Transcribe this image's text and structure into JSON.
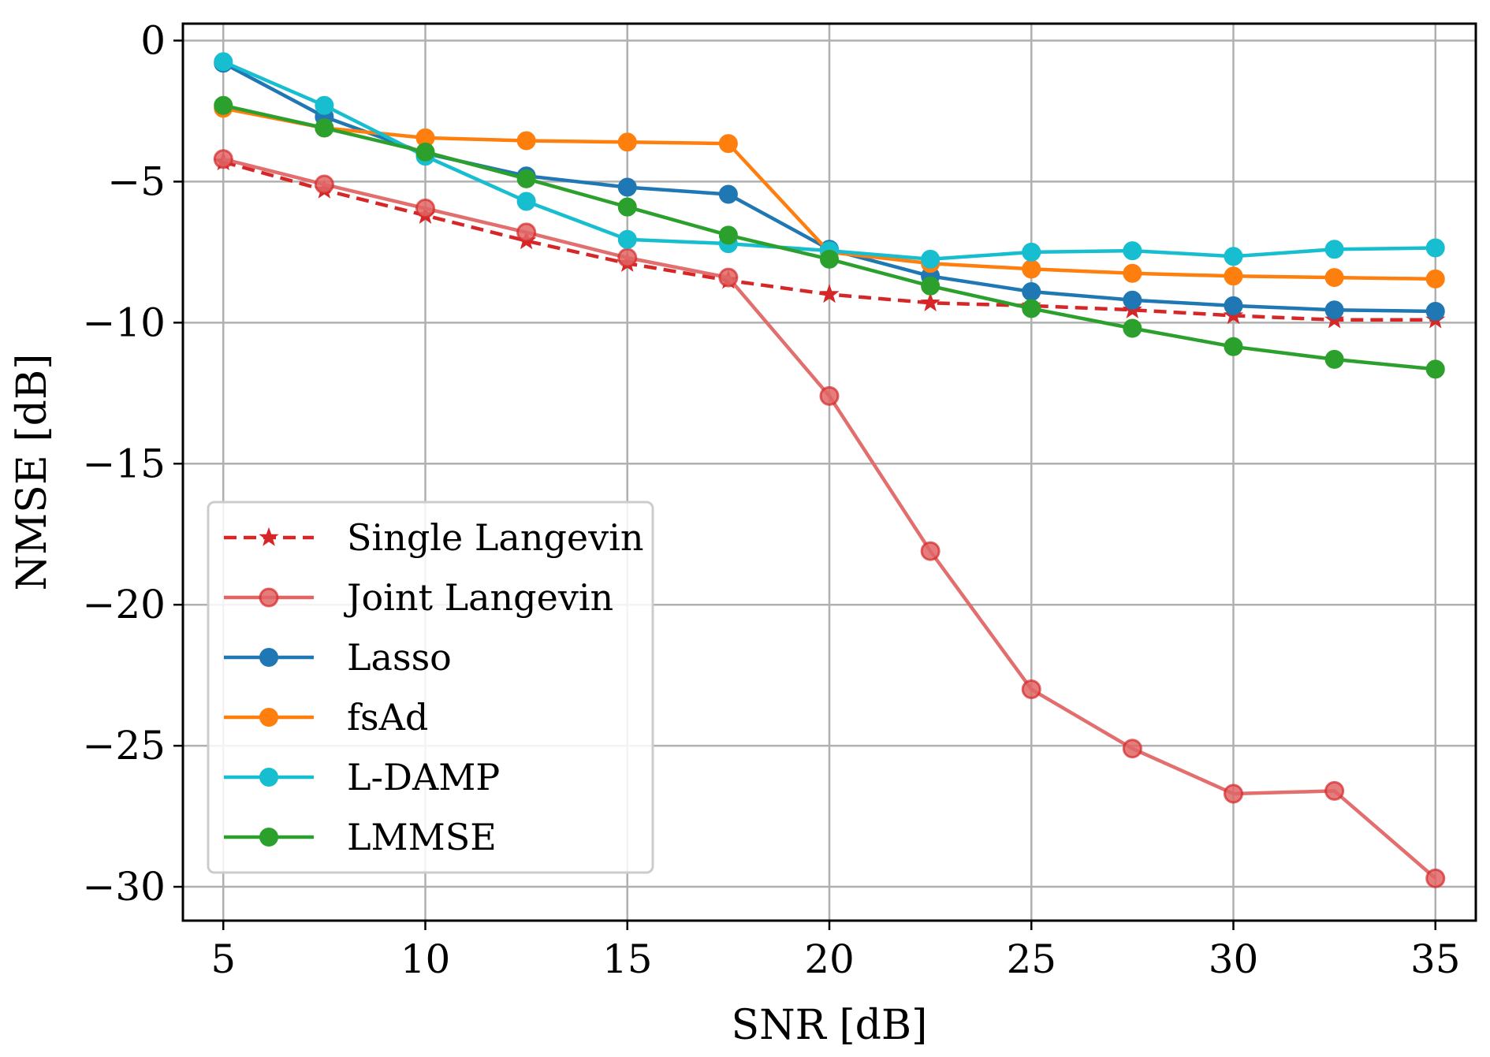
{
  "chart_data": {
    "type": "line",
    "title": "",
    "xlabel": "SNR [dB]",
    "ylabel": "NMSE [dB]",
    "xlim": [
      4,
      36
    ],
    "ylim": [
      -31.2,
      0.6
    ],
    "xticks": [
      5,
      10,
      15,
      20,
      25,
      30,
      35
    ],
    "yticks": [
      0,
      -5,
      -10,
      -15,
      -20,
      -25,
      -30
    ],
    "xtick_labels": [
      "5",
      "10",
      "15",
      "20",
      "25",
      "30",
      "35"
    ],
    "ytick_labels": [
      "0",
      "−5",
      "−10",
      "−15",
      "−20",
      "−25",
      "−30"
    ],
    "grid": true,
    "legend_position": "lower-left",
    "x": [
      5,
      7.5,
      10,
      12.5,
      15,
      17.5,
      20,
      22.5,
      25,
      27.5,
      30,
      32.5,
      35
    ],
    "series": [
      {
        "name": "Single Langevin",
        "color": "#d62728",
        "style": "dashed",
        "marker": "star",
        "values": [
          -4.3,
          -5.3,
          -6.2,
          -7.1,
          -7.9,
          -8.5,
          -9.0,
          -9.3,
          -9.4,
          -9.55,
          -9.75,
          -9.9,
          -9.9
        ]
      },
      {
        "name": "Joint Langevin",
        "color": "#e06666",
        "style": "solid",
        "marker": "circle-translucent",
        "values": [
          -4.2,
          -5.1,
          -5.95,
          -6.8,
          -7.7,
          -8.4,
          -12.6,
          -18.1,
          -23.0,
          -25.1,
          -26.7,
          -26.6,
          -29.7
        ]
      },
      {
        "name": "Lasso",
        "color": "#1f77b4",
        "style": "solid",
        "marker": "circle",
        "values": [
          -0.8,
          -2.7,
          -4.0,
          -4.8,
          -5.2,
          -5.45,
          -7.4,
          -8.35,
          -8.9,
          -9.2,
          -9.4,
          -9.55,
          -9.6
        ]
      },
      {
        "name": "fsAd",
        "color": "#ff7f0e",
        "style": "solid",
        "marker": "circle",
        "values": [
          -2.4,
          -3.1,
          -3.45,
          -3.55,
          -3.6,
          -3.65,
          -7.5,
          -7.9,
          -8.1,
          -8.25,
          -8.35,
          -8.4,
          -8.45
        ]
      },
      {
        "name": "L-DAMP",
        "color": "#17becf",
        "style": "solid",
        "marker": "circle",
        "values": [
          -0.75,
          -2.3,
          -4.1,
          -5.7,
          -7.05,
          -7.2,
          -7.45,
          -7.75,
          -7.5,
          -7.45,
          -7.65,
          -7.4,
          -7.35
        ]
      },
      {
        "name": "LMMSE",
        "color": "#2ca02c",
        "style": "solid",
        "marker": "circle",
        "values": [
          -2.3,
          -3.1,
          -3.95,
          -4.9,
          -5.9,
          -6.9,
          -7.75,
          -8.7,
          -9.5,
          -10.2,
          -10.85,
          -11.3,
          -11.65
        ]
      }
    ]
  }
}
